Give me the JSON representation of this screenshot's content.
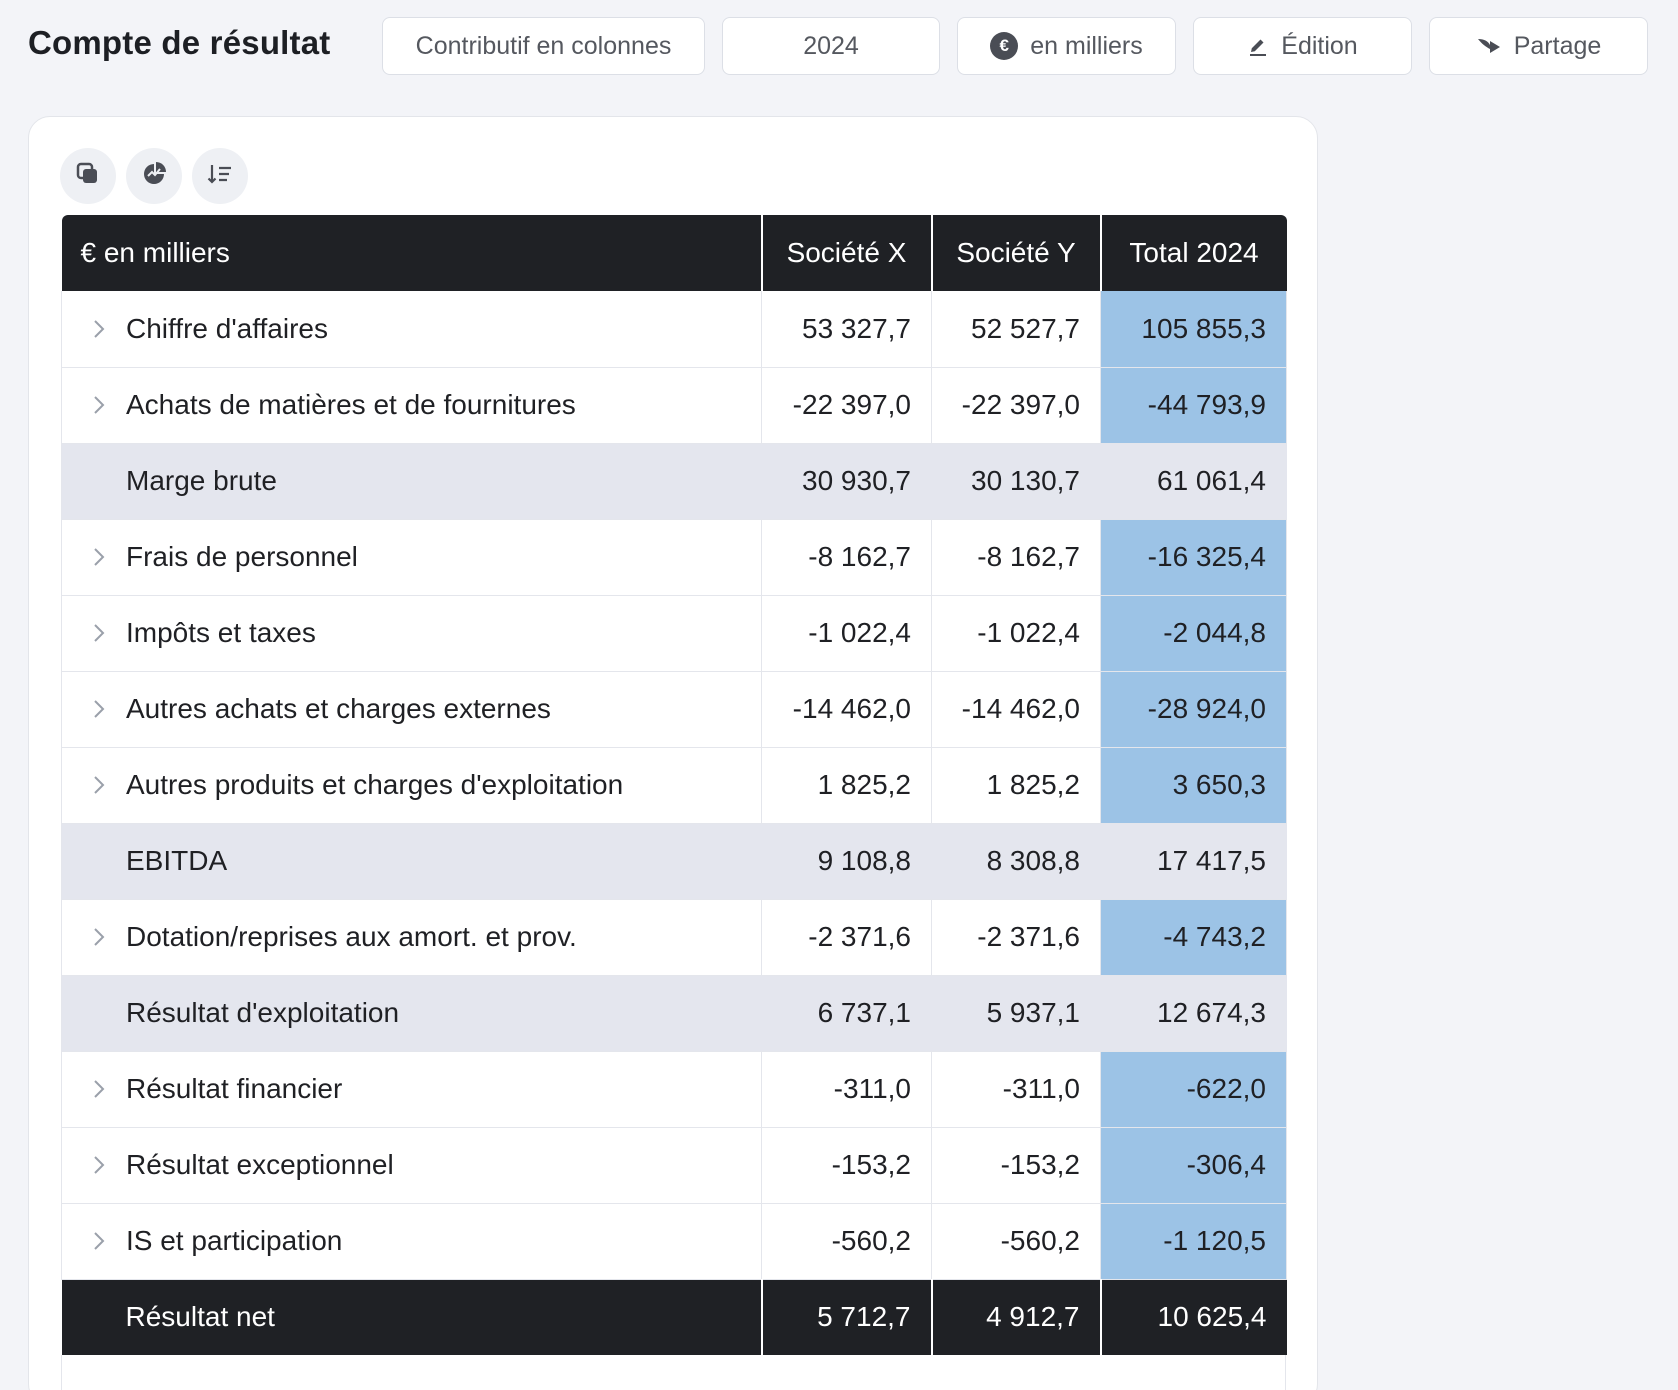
{
  "header": {
    "title": "Compte de résultat",
    "buttons": {
      "view": "Contributif en colonnes",
      "year": "2024",
      "unit": "en milliers",
      "unit_badge": "€",
      "edit": "Édition",
      "share": "Partage"
    }
  },
  "table": {
    "columns": [
      "€ en milliers",
      "Société X",
      "Société Y",
      "Total 2024"
    ],
    "rows": [
      {
        "label": "Chiffre d'affaires",
        "kind": "detail",
        "x": "53 327,7",
        "y": "52 527,7",
        "total": "105 855,3"
      },
      {
        "label": "Achats de matières et de fournitures",
        "kind": "detail",
        "x": "-22 397,0",
        "y": "-22 397,0",
        "total": "-44 793,9"
      },
      {
        "label": "Marge brute",
        "kind": "subtotal",
        "x": "30 930,7",
        "y": "30 130,7",
        "total": "61 061,4"
      },
      {
        "label": "Frais de personnel",
        "kind": "detail",
        "x": "-8 162,7",
        "y": "-8 162,7",
        "total": "-16 325,4"
      },
      {
        "label": "Impôts et taxes",
        "kind": "detail",
        "x": "-1 022,4",
        "y": "-1 022,4",
        "total": "-2 044,8"
      },
      {
        "label": "Autres achats et charges externes",
        "kind": "detail",
        "x": "-14 462,0",
        "y": "-14 462,0",
        "total": "-28 924,0"
      },
      {
        "label": "Autres produits et charges d'exploitation",
        "kind": "detail",
        "x": "1 825,2",
        "y": "1 825,2",
        "total": "3 650,3"
      },
      {
        "label": "EBITDA",
        "kind": "subtotal",
        "x": "9 108,8",
        "y": "8 308,8",
        "total": "17 417,5"
      },
      {
        "label": "Dotation/reprises aux amort. et prov.",
        "kind": "detail",
        "x": "-2 371,6",
        "y": "-2 371,6",
        "total": "-4 743,2"
      },
      {
        "label": "Résultat d'exploitation",
        "kind": "subtotal",
        "x": "6 737,1",
        "y": "5 937,1",
        "total": "12 674,3"
      },
      {
        "label": "Résultat financier",
        "kind": "detail",
        "x": "-311,0",
        "y": "-311,0",
        "total": "-622,0"
      },
      {
        "label": "Résultat exceptionnel",
        "kind": "detail",
        "x": "-153,2",
        "y": "-153,2",
        "total": "-306,4"
      },
      {
        "label": "IS et participation",
        "kind": "detail",
        "x": "-560,2",
        "y": "-560,2",
        "total": "-1 120,5"
      },
      {
        "label": "Résultat net",
        "kind": "total",
        "x": "5 712,7",
        "y": "4 912,7",
        "total": "10 625,4"
      }
    ]
  },
  "colors": {
    "total_highlight": "#9cc3e6",
    "header_dark": "#1f2125",
    "subtotal_bg": "#e4e6ee"
  },
  "icons": {
    "tools": [
      "copy-icon",
      "chart-icon",
      "sort-icon"
    ],
    "row_expand": "chevron-right-icon",
    "edit": "pencil-icon",
    "share": "share-arrow-icon"
  }
}
